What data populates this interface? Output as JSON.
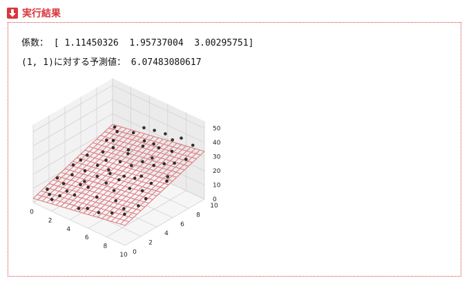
{
  "header": {
    "title": "実行結果",
    "icon": "download-arrow-icon",
    "accent_color": "#d9363e"
  },
  "output": {
    "coef_line": "係数： [ 1.11450326  1.95737004  3.00295751]",
    "predict_line": "(1, 1)に対する予測値： 6.07483080617"
  },
  "chart_data": {
    "type": "scatter",
    "subtype": "3d scatter with fitted regression plane",
    "title": "",
    "xlabel": "",
    "ylabel": "",
    "zlabel": "",
    "x_ticks": [
      "0",
      "2",
      "4",
      "6",
      "8",
      "10"
    ],
    "y_ticks": [
      "0",
      "2",
      "4",
      "6",
      "8",
      "10"
    ],
    "z_ticks": [
      "0",
      "10",
      "20",
      "30",
      "40",
      "50"
    ],
    "xlim": [
      0,
      10
    ],
    "ylim": [
      0,
      10
    ],
    "zlim": [
      0,
      50
    ],
    "grid": true,
    "plane": {
      "coef": [
        1.11450326,
        1.95737004,
        3.00295751
      ],
      "grid_lines": 21,
      "color": "#e07b7f"
    },
    "point_color": "#111111",
    "points": [
      [
        0.5,
        1.2,
        7.0
      ],
      [
        1.3,
        3.4,
        12.5
      ],
      [
        2.2,
        0.8,
        8.9
      ],
      [
        3.1,
        5.6,
        21.0
      ],
      [
        4.0,
        2.3,
        15.4
      ],
      [
        5.2,
        7.8,
        30.1
      ],
      [
        6.1,
        4.4,
        22.7
      ],
      [
        7.3,
        9.1,
        36.6
      ],
      [
        8.4,
        1.7,
        15.6
      ],
      [
        9.2,
        6.3,
        25.5
      ],
      [
        0.9,
        8.2,
        20.0
      ],
      [
        1.8,
        6.7,
        19.2
      ],
      [
        2.7,
        9.5,
        26.5
      ],
      [
        3.6,
        3.9,
        16.8
      ],
      [
        4.5,
        8.8,
        28.4
      ],
      [
        5.4,
        0.6,
        10.3
      ],
      [
        6.3,
        2.9,
        18.1
      ],
      [
        7.2,
        5.3,
        23.2
      ],
      [
        8.1,
        8.1,
        34.2
      ],
      [
        9.5,
        3.2,
        21.0
      ],
      [
        0.3,
        4.7,
        12.2
      ],
      [
        1.5,
        2.1,
        11.1
      ],
      [
        2.4,
        7.3,
        22.2
      ],
      [
        3.3,
        1.4,
        10.8
      ],
      [
        4.2,
        6.1,
        21.6
      ],
      [
        5.1,
        3.3,
        18.4
      ],
      [
        6.0,
        9.7,
        35.0
      ],
      [
        6.9,
        7.0,
        29.5
      ],
      [
        7.8,
        0.9,
        13.4
      ],
      [
        8.7,
        4.8,
        24.3
      ],
      [
        9.6,
        9.0,
        40.1
      ],
      [
        0.7,
        6.0,
        16.0
      ],
      [
        1.1,
        9.3,
        23.0
      ],
      [
        2.0,
        4.2,
        14.8
      ],
      [
        2.9,
        2.6,
        12.9
      ],
      [
        3.8,
        7.6,
        23.8
      ],
      [
        4.7,
        0.3,
        9.1
      ],
      [
        5.6,
        5.9,
        23.7
      ],
      [
        6.5,
        8.3,
        31.2
      ],
      [
        7.4,
        3.6,
        20.6
      ],
      [
        8.3,
        6.9,
        30.0
      ],
      [
        9.0,
        1.1,
        15.5
      ],
      [
        9.8,
        5.5,
        26.8
      ],
      [
        0.2,
        2.8,
        8.8
      ],
      [
        1.7,
        0.4,
        6.0
      ],
      [
        2.6,
        5.1,
        17.5
      ],
      [
        3.5,
        9.9,
        31.0
      ],
      [
        4.4,
        4.6,
        18.7
      ],
      [
        5.3,
        1.9,
        13.7
      ],
      [
        6.2,
        6.6,
        26.1
      ],
      [
        7.1,
        2.2,
        15.6
      ],
      [
        8.0,
        9.4,
        39.0
      ],
      [
        8.9,
        7.5,
        30.2
      ],
      [
        9.3,
        2.5,
        17.7
      ],
      [
        0.6,
        5.3,
        14.5
      ],
      [
        1.9,
        7.9,
        23.7
      ],
      [
        3.0,
        3.0,
        14.2
      ],
      [
        4.9,
        9.6,
        34.4
      ],
      [
        5.8,
        4.1,
        20.3
      ],
      [
        7.6,
        6.4,
        28.3
      ],
      [
        2.3,
        1.6,
        9.8
      ],
      [
        3.9,
        5.0,
        18.6
      ],
      [
        6.7,
        0.5,
        11.6
      ],
      [
        8.6,
        3.8,
        22.0
      ],
      [
        1.0,
        0.9,
        5.8
      ],
      [
        4.1,
        7.2,
        23.4
      ],
      [
        5.7,
        8.6,
        30.5
      ],
      [
        7.0,
        4.7,
        23.0
      ],
      [
        9.9,
        7.8,
        35.0
      ],
      [
        0.4,
        9.8,
        22.5
      ]
    ]
  }
}
